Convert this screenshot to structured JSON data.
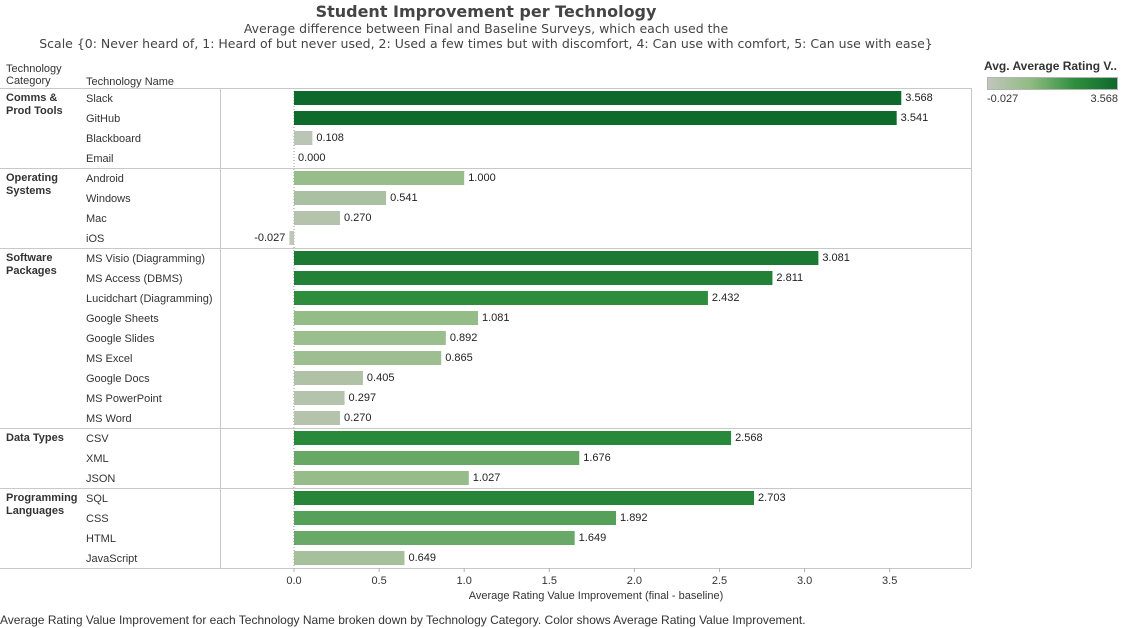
{
  "chart_data": {
    "type": "bar",
    "title": "Student Improvement per Technology",
    "subtitle_lines": [
      "Average difference between Final and Baseline Surveys, which each used the",
      "Scale {0: Never heard of, 1: Heard of but never used, 2: Used a few times but with discomfort, 4: Can use with comfort, 5: Can use with ease}"
    ],
    "column_headers": {
      "category": "Technology Category",
      "name": "Technology Name"
    },
    "orientation": "horizontal",
    "xlabel": "Average Rating Value Improvement (final - baseline)",
    "xlim": [
      -0.1,
      4.0
    ],
    "xticks": [
      "0.0",
      "0.5",
      "1.0",
      "1.5",
      "2.0",
      "2.5",
      "3.0",
      "3.5"
    ],
    "xtick_values": [
      0,
      0.5,
      1.0,
      1.5,
      2.0,
      2.5,
      3.0,
      3.5
    ],
    "grid": false,
    "legend": {
      "title": "Avg. Average Rating V..",
      "min_label": "-0.027",
      "max_label": "3.568",
      "min": -0.027,
      "max": 3.568,
      "placement": "top-right",
      "colors": [
        "#c1c6bb",
        "#8fbb82",
        "#2f8f3e",
        "#0d6a2c"
      ]
    },
    "groups": [
      {
        "category": "Comms & Prod Tools",
        "items": [
          {
            "name": "Slack",
            "value": 3.568,
            "label": "3.568"
          },
          {
            "name": "GitHub",
            "value": 3.541,
            "label": "3.541"
          },
          {
            "name": "Blackboard",
            "value": 0.108,
            "label": "0.108"
          },
          {
            "name": "Email",
            "value": 0.0,
            "label": "0.000"
          }
        ]
      },
      {
        "category": "Operating Systems",
        "items": [
          {
            "name": "Android",
            "value": 1.0,
            "label": "1.000"
          },
          {
            "name": "Windows",
            "value": 0.541,
            "label": "0.541"
          },
          {
            "name": "Mac",
            "value": 0.27,
            "label": "0.270"
          },
          {
            "name": "iOS",
            "value": -0.027,
            "label": "-0.027"
          }
        ]
      },
      {
        "category": "Software Packages",
        "items": [
          {
            "name": "MS Visio (Diagramming)",
            "value": 3.081,
            "label": "3.081"
          },
          {
            "name": "MS Access (DBMS)",
            "value": 2.811,
            "label": "2.811"
          },
          {
            "name": "Lucidchart (Diagramming)",
            "value": 2.432,
            "label": "2.432"
          },
          {
            "name": "Google Sheets",
            "value": 1.081,
            "label": "1.081"
          },
          {
            "name": "Google Slides",
            "value": 0.892,
            "label": "0.892"
          },
          {
            "name": "MS Excel",
            "value": 0.865,
            "label": "0.865"
          },
          {
            "name": "Google Docs",
            "value": 0.405,
            "label": "0.405"
          },
          {
            "name": "MS PowerPoint",
            "value": 0.297,
            "label": "0.297"
          },
          {
            "name": "MS Word",
            "value": 0.27,
            "label": "0.270"
          }
        ]
      },
      {
        "category": "Data Types",
        "items": [
          {
            "name": "CSV",
            "value": 2.568,
            "label": "2.568"
          },
          {
            "name": "XML",
            "value": 1.676,
            "label": "1.676"
          },
          {
            "name": "JSON",
            "value": 1.027,
            "label": "1.027"
          }
        ]
      },
      {
        "category": "Programming Languages",
        "items": [
          {
            "name": "SQL",
            "value": 2.703,
            "label": "2.703"
          },
          {
            "name": "CSS",
            "value": 1.892,
            "label": "1.892"
          },
          {
            "name": "HTML",
            "value": 1.649,
            "label": "1.649"
          },
          {
            "name": "JavaScript",
            "value": 0.649,
            "label": "0.649"
          }
        ]
      }
    ]
  },
  "footer": "Average Rating Value Improvement for each Technology Name broken down by Technology Category.  Color shows Average Rating Value Improvement."
}
